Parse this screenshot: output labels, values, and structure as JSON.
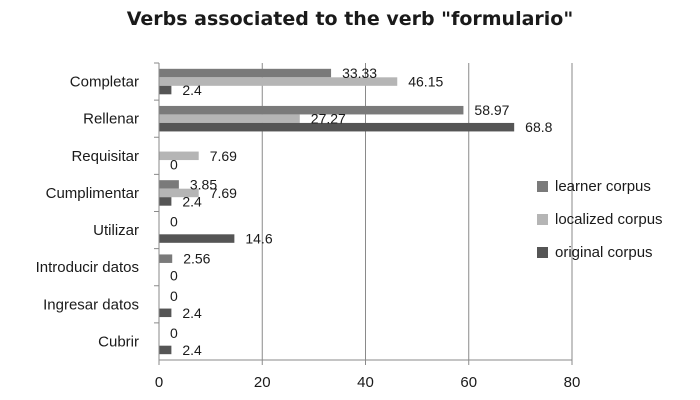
{
  "chart_data": {
    "type": "bar",
    "orientation": "horizontal",
    "title": "Verbs associated to the verb \"formulario\"",
    "categories": [
      "Completar",
      "Rellenar",
      "Requisitar",
      "Cumplimentar",
      "Utilizar",
      "Introducir datos",
      "Ingresar datos",
      "Cubrir"
    ],
    "series": [
      {
        "name": "learner corpus",
        "color": "#7a7a7a",
        "values": [
          33.33,
          58.97,
          null,
          3.85,
          0,
          2.56,
          0,
          0
        ]
      },
      {
        "name": "localized corpus",
        "color": "#b5b5b5",
        "values": [
          46.15,
          27.27,
          7.69,
          7.69,
          null,
          null,
          null,
          null
        ]
      },
      {
        "name": "original corpus",
        "color": "#555555",
        "values": [
          2.4,
          68.8,
          0,
          2.4,
          14.6,
          0,
          2.4,
          2.4
        ]
      }
    ],
    "xlim": [
      0,
      80
    ],
    "xticks": [
      0,
      20,
      40,
      60,
      80
    ],
    "grid": true,
    "legend_position": "right"
  }
}
